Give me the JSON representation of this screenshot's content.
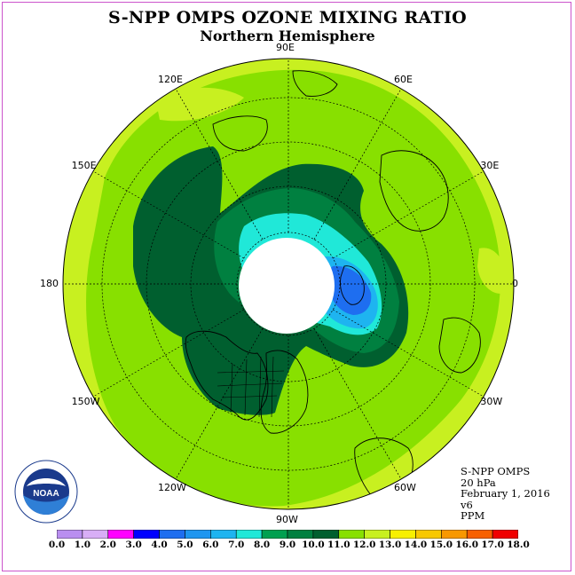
{
  "header": {
    "title": "S-NPP OMPS OZONE MIXING RATIO",
    "subtitle": "Northern Hemisphere"
  },
  "map": {
    "projection": "polar stereographic, north pole",
    "longitude_labels": [
      "90E",
      "60E",
      "30E",
      "0",
      "30W",
      "60W",
      "90W",
      "120W",
      "150W",
      "180",
      "150E",
      "120E"
    ],
    "no_data_region": "polar night (white)",
    "fill_levels_ppm": {
      "outer_ring": "11.0-12.0",
      "mid_latitudes": "10.0-11.0",
      "vortex_collar": "9.0-10.0",
      "vortex_edge": "8.0-9.0",
      "vortex_inner": "7.0-8.0",
      "vortex_core": "5.0-7.0"
    }
  },
  "info": {
    "instrument": "S-NPP OMPS",
    "pressure": "20 hPa",
    "date": "February 1, 2016",
    "version": "v6",
    "units": "PPM"
  },
  "colorbar": {
    "tick_labels": [
      "0.0",
      "1.0",
      "2.0",
      "3.0",
      "4.0",
      "5.0",
      "6.0",
      "7.0",
      "8.0",
      "9.0",
      "10.0",
      "11.0",
      "12.0",
      "13.0",
      "14.0",
      "15.0",
      "16.0",
      "17.0",
      "18.0"
    ],
    "colors": [
      "#b98ef0",
      "#d8aef6",
      "#ff00ff",
      "#0000ff",
      "#1e6ef0",
      "#1e96f0",
      "#1eb4f0",
      "#20e8d8",
      "#00a050",
      "#008040",
      "#005f2f",
      "#88e000",
      "#c8f020",
      "#f8f000",
      "#f8c800",
      "#f89800",
      "#f86000",
      "#f00000",
      "#8c4a28"
    ]
  },
  "logo": {
    "text": "NOAA",
    "ring_text": "NATIONAL OCEANIC AND ATMOSPHERIC ADMINISTRATION · U.S. DEPARTMENT OF COMMERCE"
  }
}
